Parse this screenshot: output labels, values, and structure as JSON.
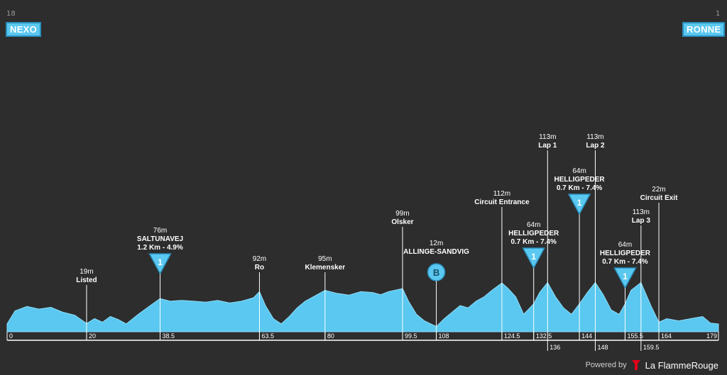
{
  "header": {
    "start_number": "18",
    "start_town": "NEXO",
    "finish_number": "1",
    "finish_town": "RONNE"
  },
  "footer": {
    "powered_by": "Powered by",
    "brand": "La FlammeRouge"
  },
  "colors": {
    "background": "#2d2d2d",
    "profile_fill": "#5ac8f0",
    "profile_stroke": "#8fdcf7",
    "accent": "#5ac8f0",
    "brand_red": "#e2001a"
  },
  "chart_data": {
    "type": "area",
    "xlabel": "",
    "ylabel": "",
    "xlim": [
      0,
      179
    ],
    "distance_ticks": [
      {
        "km": 0,
        "label": "0"
      },
      {
        "km": 20,
        "label": "20"
      },
      {
        "km": 38.5,
        "label": "38.5"
      },
      {
        "km": 63.5,
        "label": "63.5"
      },
      {
        "km": 80,
        "label": "80"
      },
      {
        "km": 99.5,
        "label": "99.5"
      },
      {
        "km": 108,
        "label": "108"
      },
      {
        "km": 124.5,
        "label": "124.5"
      },
      {
        "km": 132.5,
        "label": "132.5"
      },
      {
        "km": 144,
        "label": "144"
      },
      {
        "km": 155.5,
        "label": "155.5"
      },
      {
        "km": 164,
        "label": "164"
      },
      {
        "km": 179,
        "label": "179"
      }
    ],
    "distance_ticks_below": [
      {
        "km": 136,
        "label": "136"
      },
      {
        "km": 148,
        "label": "148"
      },
      {
        "km": 159.5,
        "label": "159.5"
      }
    ],
    "profile": {
      "km": [
        0,
        2,
        5,
        8,
        11,
        14,
        17,
        20,
        22,
        24,
        26,
        28,
        30,
        33,
        36,
        38.5,
        41,
        44,
        47,
        50,
        53,
        56,
        59,
        62,
        63.5,
        65,
        67,
        69,
        71,
        73,
        75,
        77,
        80,
        83,
        86,
        89,
        92,
        94,
        96,
        99.5,
        101,
        103,
        105,
        108,
        110,
        112,
        114,
        116,
        118,
        120,
        122,
        124.5,
        126,
        128,
        130,
        132.5,
        134,
        136,
        138,
        140,
        142,
        144,
        146,
        148,
        150,
        152,
        154,
        155.5,
        157,
        159.5,
        162,
        164,
        166,
        169,
        172,
        175,
        177,
        179
      ],
      "elev": [
        18,
        48,
        58,
        52,
        56,
        45,
        38,
        19,
        30,
        22,
        35,
        28,
        18,
        40,
        60,
        76,
        70,
        72,
        70,
        68,
        72,
        66,
        70,
        78,
        92,
        60,
        30,
        18,
        35,
        55,
        70,
        80,
        95,
        88,
        84,
        92,
        90,
        85,
        92,
        99,
        70,
        40,
        25,
        12,
        30,
        45,
        60,
        55,
        70,
        80,
        95,
        112,
        100,
        80,
        40,
        64,
        90,
        113,
        80,
        55,
        40,
        64,
        90,
        113,
        85,
        50,
        40,
        64,
        95,
        113,
        60,
        22,
        30,
        25,
        30,
        35,
        20,
        18
      ]
    },
    "waypoints": [
      {
        "km": 20,
        "elev": "19m",
        "name": "Listed"
      },
      {
        "km": 63.5,
        "elev": "92m",
        "name": "Ro"
      },
      {
        "km": 80,
        "elev": "95m",
        "name": "Klemensker"
      },
      {
        "km": 99.5,
        "elev": "99m",
        "name": "Olsker"
      },
      {
        "km": 124.5,
        "elev": "112m",
        "name": "Circuit Entrance"
      },
      {
        "km": 136,
        "elev": "113m",
        "name": "Lap 1"
      },
      {
        "km": 148,
        "elev": "113m",
        "name": "Lap 2"
      },
      {
        "km": 159.5,
        "elev": "113m",
        "name": "Lap 3"
      },
      {
        "km": 164,
        "elev": "22m",
        "name": "Circuit Exit"
      }
    ],
    "climbs": [
      {
        "km": 38.5,
        "elev": "76m",
        "name": "SALTUNAVEJ",
        "detail": "1.2 Km - 4.9%",
        "category": "1"
      },
      {
        "km": 132.5,
        "elev": "64m",
        "name": "HELLIGPEDER",
        "detail": "0.7 Km - 7.4%",
        "category": "1"
      },
      {
        "km": 144,
        "elev": "64m",
        "name": "HELLIGPEDER",
        "detail": "0.7 Km - 7.4%",
        "category": "1"
      },
      {
        "km": 155.5,
        "elev": "64m",
        "name": "HELLIGPEDER",
        "detail": "0.7 Km - 7.4%",
        "category": "1"
      }
    ],
    "sprints": [
      {
        "km": 108,
        "elev": "12m",
        "name": "ALLINGE-SANDVIG",
        "symbol": "B"
      }
    ]
  }
}
